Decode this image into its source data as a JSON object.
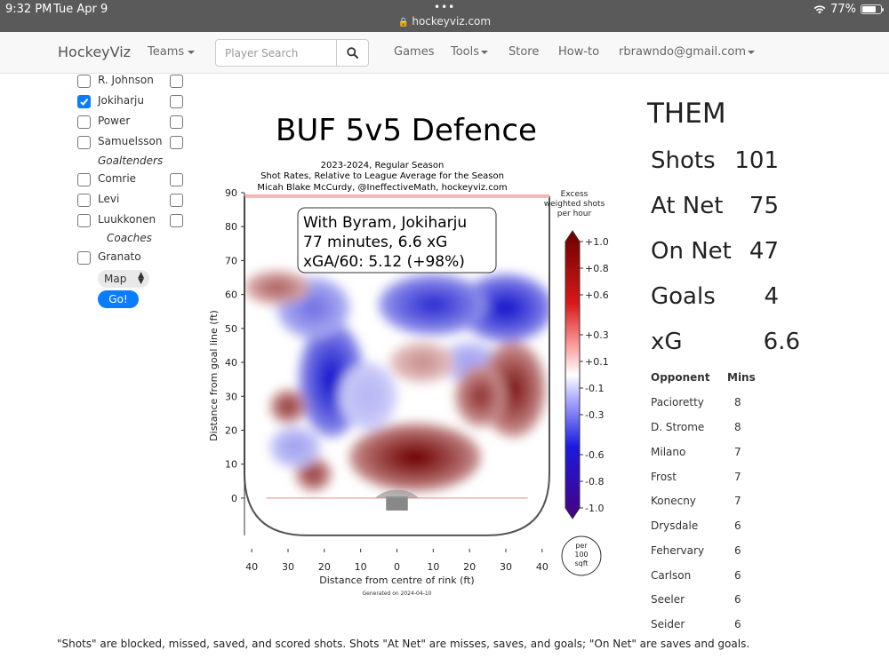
{
  "status_bar": {
    "time": "9:32 PM",
    "date": "Tue Apr 9",
    "url": "hockeyviz.com",
    "battery": "77%",
    "battery_level": 0.77,
    "icons": [
      "lock-icon",
      "wifi-icon",
      "battery-icon"
    ]
  },
  "nav": {
    "brand": "HockeyViz",
    "teams": "Teams",
    "search_placeholder": "Player Search",
    "games": "Games",
    "tools": "Tools",
    "store": "Store",
    "howto": "How-to",
    "account": "rbrawndo@gmail.com"
  },
  "sidebar": {
    "players": [
      {
        "name": "R. Johnson",
        "checked": false
      },
      {
        "name": "Jokiharju",
        "checked": true
      },
      {
        "name": "Power",
        "checked": false
      },
      {
        "name": "Samuelsson",
        "checked": false
      }
    ],
    "goaltenders_heading": "Goaltenders",
    "goaltenders": [
      {
        "name": "Comrie",
        "checked": false
      },
      {
        "name": "Levi",
        "checked": false
      },
      {
        "name": "Luukkonen",
        "checked": false
      }
    ],
    "coaches_heading": "Coaches",
    "coaches": [
      {
        "name": "Granato",
        "checked": false
      }
    ],
    "select_value": "Map",
    "go_label": "Go!"
  },
  "chart_data": {
    "type": "heatmap",
    "title": "BUF 5v5 Defence",
    "subtitle_lines": [
      "2023-2024, Regular Season",
      "Shot Rates, Relative to League Average for the Season",
      "Micah Blake McCurdy, @IneffectiveMath, hockeyviz.com"
    ],
    "annotation_lines": [
      "With Byram, Jokiharju",
      "  77 minutes, 6.6 xG",
      "xGA/60: 5.12 (+98%)"
    ],
    "xlabel": "Distance from centre of rink (ft)",
    "ylabel": "Distance from goal line (ft)",
    "xticks": [
      "40",
      "30",
      "20",
      "10",
      "0",
      "10",
      "20",
      "30",
      "40"
    ],
    "yticks": [
      "0",
      "10",
      "20",
      "30",
      "40",
      "50",
      "60",
      "70",
      "80",
      "90"
    ],
    "xlim": [
      -42,
      42
    ],
    "ylim": [
      -5,
      90
    ],
    "colorbar_title": [
      "Excess",
      "weighted shots",
      "per hour"
    ],
    "colorbar_ticks": [
      "+1.0",
      "+0.8",
      "+0.6",
      "+0.3",
      "+0.1",
      "-0.1",
      "-0.3",
      "-0.6",
      "-0.8",
      "-1.0"
    ],
    "colorbar_range": [
      -1.0,
      1.0
    ],
    "unit_badge": [
      "per",
      "100",
      "sqft"
    ],
    "generated": "Generated on 2024-04-10",
    "colors": {
      "positive": "#8b0000",
      "negative": "#0000c8",
      "neutral": "#ffffff"
    },
    "blobs": [
      {
        "x": 30,
        "y": 56,
        "value": -0.9,
        "rx": 13,
        "ry": 10
      },
      {
        "x": 10,
        "y": 57,
        "value": -0.8,
        "rx": 15,
        "ry": 9
      },
      {
        "x": 20,
        "y": 40,
        "value": -0.3,
        "rx": 8,
        "ry": 6
      },
      {
        "x": 32,
        "y": 32,
        "value": 0.9,
        "rx": 9,
        "ry": 14
      },
      {
        "x": 23,
        "y": 30,
        "value": 0.8,
        "rx": 7,
        "ry": 9
      },
      {
        "x": 5,
        "y": 12,
        "value": 1.0,
        "rx": 18,
        "ry": 10
      },
      {
        "x": 7,
        "y": 40,
        "value": 0.4,
        "rx": 9,
        "ry": 6
      },
      {
        "x": -18,
        "y": 35,
        "value": -0.9,
        "rx": 9,
        "ry": 17
      },
      {
        "x": -23,
        "y": 56,
        "value": -0.5,
        "rx": 10,
        "ry": 9
      },
      {
        "x": -33,
        "y": 62,
        "value": 0.6,
        "rx": 9,
        "ry": 5
      },
      {
        "x": -30,
        "y": 27,
        "value": 0.8,
        "rx": 5,
        "ry": 5
      },
      {
        "x": -23,
        "y": 7,
        "value": 0.8,
        "rx": 5,
        "ry": 5
      },
      {
        "x": -8,
        "y": 30,
        "value": -0.2,
        "rx": 8,
        "ry": 10
      },
      {
        "x": -28,
        "y": 15,
        "value": -0.3,
        "rx": 7,
        "ry": 6
      }
    ]
  },
  "them": {
    "heading": "THEM",
    "stats": [
      {
        "label": "Shots",
        "value": "101"
      },
      {
        "label": "At Net",
        "value": "75"
      },
      {
        "label": "On Net",
        "value": "47"
      },
      {
        "label": "Goals",
        "value": "4"
      },
      {
        "label": "xG",
        "value": "6.6"
      }
    ],
    "opponents_header": {
      "name": "Opponent",
      "mins": "Mins"
    },
    "opponents": [
      {
        "name": "Pacioretty",
        "mins": "8"
      },
      {
        "name": "D. Strome",
        "mins": "8"
      },
      {
        "name": "Milano",
        "mins": "7"
      },
      {
        "name": "Frost",
        "mins": "7"
      },
      {
        "name": "Konecny",
        "mins": "7"
      },
      {
        "name": "Drysdale",
        "mins": "6"
      },
      {
        "name": "Fehervary",
        "mins": "6"
      },
      {
        "name": "Carlson",
        "mins": "6"
      },
      {
        "name": "Seeler",
        "mins": "6"
      },
      {
        "name": "Seider",
        "mins": "6"
      }
    ]
  },
  "footnote": "\"Shots\" are blocked, missed, saved, and scored shots. Shots \"At Net\" are misses, saves, and goals; \"On Net\" are saves and goals."
}
